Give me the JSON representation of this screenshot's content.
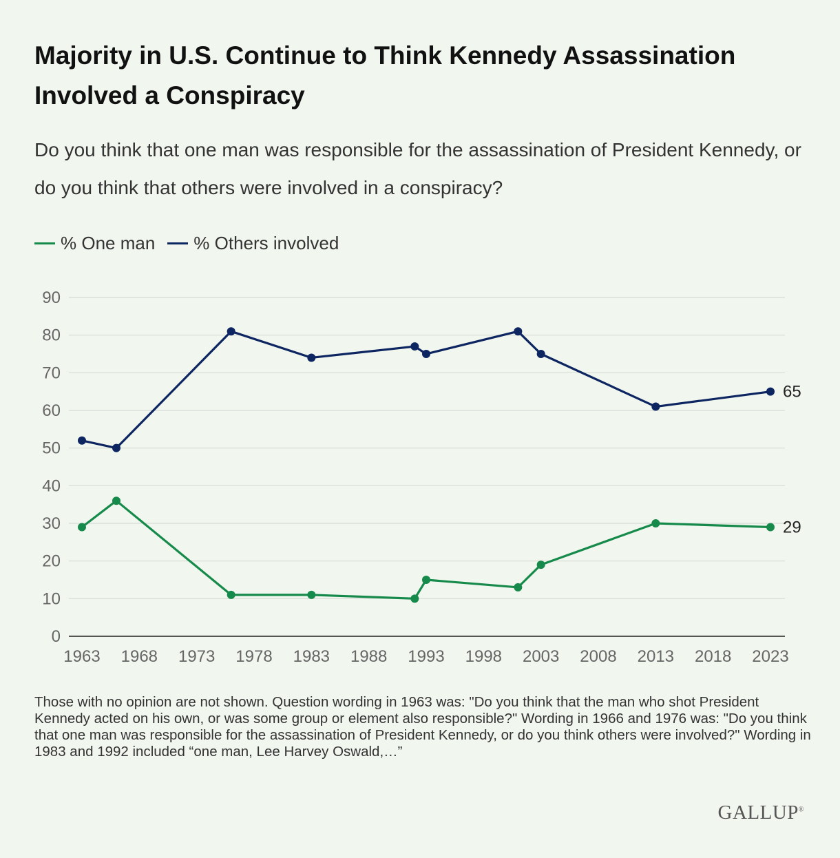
{
  "title": "Majority in U.S. Continue to Think Kennedy Assassination Involved a Conspiracy",
  "subtitle": "Do you think that one man was responsible for the assassination of President Kennedy, or do you think that others were involved in a conspiracy?",
  "note": "Those with no opinion are not shown. Question wording in 1963 was: \"Do you think that the man who shot President Kennedy acted on his own, or was some group or element also responsible?\" Wording in 1966 and 1976 was: \"Do you think that one man was responsible for the assassination of President Kennedy, or do you think others were involved?\" Wording in 1983 and 1992 included “one man, Lee Harvey Oswald,…”",
  "logo": "GALLUP",
  "chart_data": {
    "type": "line",
    "title": "Majority in U.S. Continue to Think Kennedy Assassination Involved a Conspiracy",
    "xlabel": "",
    "ylabel": "",
    "x_ticks": [
      1963,
      1968,
      1973,
      1978,
      1983,
      1988,
      1993,
      1998,
      2003,
      2008,
      2013,
      2018,
      2023
    ],
    "y_ticks": [
      0,
      10,
      20,
      30,
      40,
      50,
      60,
      70,
      80,
      90
    ],
    "xlim": [
      1963,
      2023
    ],
    "ylim": [
      0,
      90
    ],
    "grid": true,
    "legend_position": "top-left",
    "series": [
      {
        "name": "% One man",
        "color": "#168a4a",
        "points": [
          {
            "x": 1963,
            "y": 29
          },
          {
            "x": 1966,
            "y": 36
          },
          {
            "x": 1976,
            "y": 11
          },
          {
            "x": 1983,
            "y": 11
          },
          {
            "x": 1992,
            "y": 10
          },
          {
            "x": 1993,
            "y": 15
          },
          {
            "x": 2001,
            "y": 13
          },
          {
            "x": 2003,
            "y": 19
          },
          {
            "x": 2013,
            "y": 30
          },
          {
            "x": 2023,
            "y": 29
          }
        ],
        "end_label": "29"
      },
      {
        "name": "% Others involved",
        "color": "#0d2560",
        "points": [
          {
            "x": 1963,
            "y": 52
          },
          {
            "x": 1966,
            "y": 50
          },
          {
            "x": 1976,
            "y": 81
          },
          {
            "x": 1983,
            "y": 74
          },
          {
            "x": 1992,
            "y": 77
          },
          {
            "x": 1993,
            "y": 75
          },
          {
            "x": 2001,
            "y": 81
          },
          {
            "x": 2003,
            "y": 75
          },
          {
            "x": 2013,
            "y": 61
          },
          {
            "x": 2023,
            "y": 65
          }
        ],
        "end_label": "65"
      }
    ]
  }
}
